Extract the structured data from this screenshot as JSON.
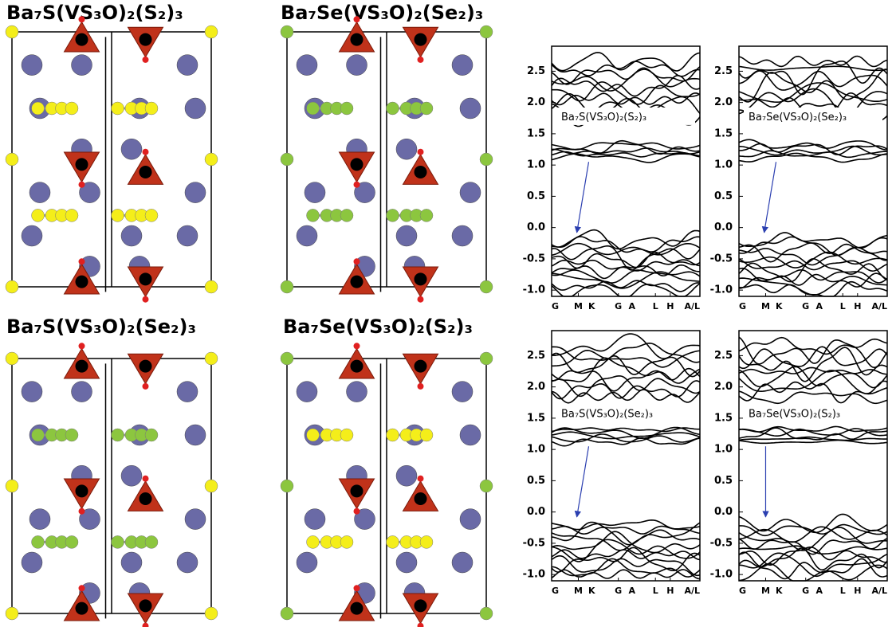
{
  "structures": [
    {
      "title": "Ba₇S(VS₃O)₂(S₂)₃"
    },
    {
      "title": "Ba₇Se(VS₃O)₂(Se₂)₃"
    },
    {
      "title": "Ba₇S(VS₃O)₂(Se₂)₃"
    },
    {
      "title": "Ba₇Se(VS₃O)₂(S₂)₃"
    }
  ],
  "band_panels": [
    {
      "label": "Ba₇S(VS₃O)₂(S₂)₃",
      "ylim": [
        -1.1,
        2.9
      ],
      "yticks": [
        {
          "value": 2.5,
          "label": "2.5"
        },
        {
          "value": 2,
          "label": "2.0"
        },
        {
          "value": 1.5,
          "label": "1.5"
        },
        {
          "value": 1,
          "label": "1.0"
        },
        {
          "value": 0.5,
          "label": "0.5"
        },
        {
          "value": 0,
          "label": "0.0"
        },
        {
          "value": -0.5,
          "label": "-0.5"
        },
        {
          "value": -1,
          "label": "-1.0"
        }
      ],
      "kpoints": [
        "G",
        "M",
        "K",
        "G",
        "A",
        "L",
        "H",
        "A/L"
      ]
    },
    {
      "label": "Ba₇Se(VS₃O)₂(Se₂)₃",
      "ylim": [
        -1.1,
        2.9
      ],
      "yticks": [
        {
          "value": 2.5,
          "label": "2.5"
        },
        {
          "value": 2,
          "label": "2.0"
        },
        {
          "value": 1.5,
          "label": "1.5"
        },
        {
          "value": 1,
          "label": "1.0"
        },
        {
          "value": 0.5,
          "label": "0.5"
        },
        {
          "value": 0,
          "label": "0.0"
        },
        {
          "value": -0.5,
          "label": "-0.5"
        },
        {
          "value": -1,
          "label": "-1.0"
        }
      ],
      "kpoints": [
        "G",
        "M",
        "K",
        "G",
        "A",
        "L",
        "H",
        "A/L"
      ]
    },
    {
      "label": "Ba₇S(VS₃O)₂(Se₂)₃",
      "ylim": [
        -1.1,
        2.9
      ],
      "yticks": [
        {
          "value": 2.5,
          "label": "2.5"
        },
        {
          "value": 2,
          "label": "2.0"
        },
        {
          "value": 1.5,
          "label": "1.5"
        },
        {
          "value": 1,
          "label": "1.0"
        },
        {
          "value": 0.5,
          "label": "0.5"
        },
        {
          "value": 0,
          "label": "0.0"
        },
        {
          "value": -0.5,
          "label": "-0.5"
        },
        {
          "value": -1,
          "label": "-1.0"
        }
      ],
      "kpoints": [
        "G",
        "M",
        "K",
        "G",
        "A",
        "L",
        "H",
        "A/L"
      ]
    },
    {
      "label": "Ba₇Se(VS₃O)₂(S₂)₃",
      "ylim": [
        -1.1,
        2.9
      ],
      "yticks": [
        {
          "value": 2.5,
          "label": "2.5"
        },
        {
          "value": 2,
          "label": "2.0"
        },
        {
          "value": 1.5,
          "label": "1.5"
        },
        {
          "value": 1,
          "label": "1.0"
        },
        {
          "value": 0.5,
          "label": "0.5"
        },
        {
          "value": 0,
          "label": "0.0"
        },
        {
          "value": -0.5,
          "label": "-0.5"
        },
        {
          "value": -1,
          "label": "-1.0"
        }
      ],
      "kpoints": [
        "G",
        "M",
        "K",
        "G",
        "A",
        "L",
        "H",
        "A/L"
      ]
    }
  ]
}
